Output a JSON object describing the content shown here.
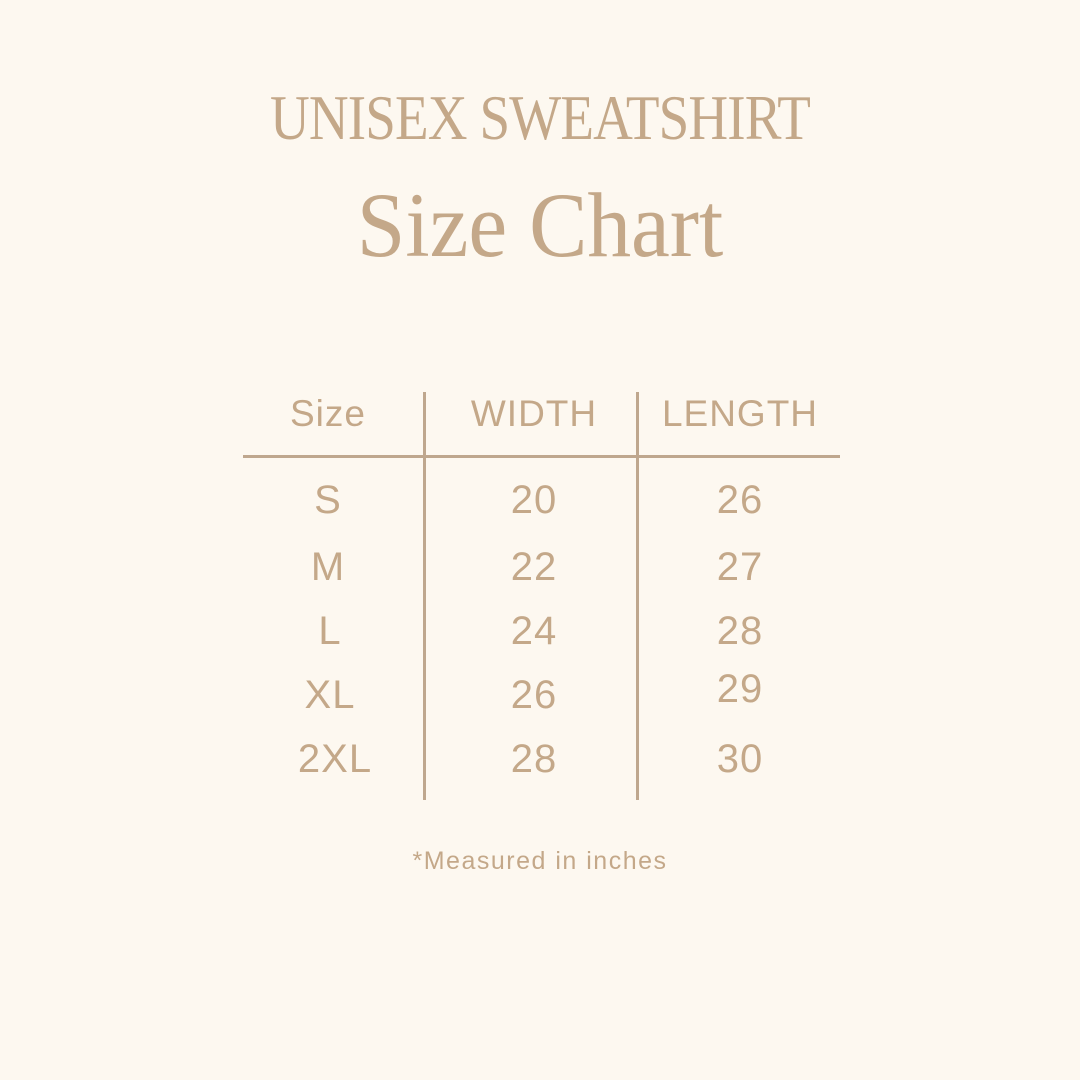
{
  "title": "UNISEX SWEATSHIRT",
  "subtitle": "Size Chart",
  "colors": {
    "background": "#fdf8f0",
    "text": "#c4a889",
    "rule": "#bfa78e"
  },
  "table": {
    "headers": [
      "Size",
      "WIDTH",
      "LENGTH"
    ],
    "rows": [
      [
        "S",
        "20",
        "26"
      ],
      [
        "M",
        "22",
        "27"
      ],
      [
        "L",
        "24",
        "28"
      ],
      [
        "XL",
        "26",
        "29"
      ],
      [
        "2XL",
        "28",
        "30"
      ]
    ]
  },
  "footnote": "*Measured in inches"
}
